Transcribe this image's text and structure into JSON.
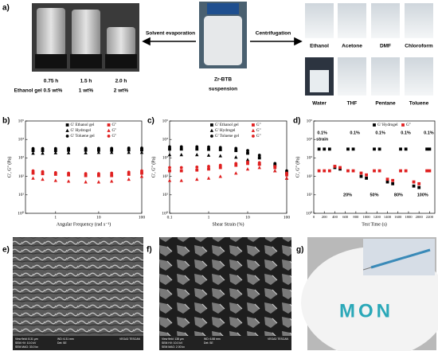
{
  "labels": [
    "a)",
    "b)",
    "c)",
    "d)",
    "e)",
    "f)",
    "g)"
  ],
  "panel_a": {
    "arrow_left": "Solvent evaporation",
    "arrow_right": "Centrifugation",
    "times": [
      "0.75 h",
      "1.5 h",
      "2.0 h"
    ],
    "concentrations": [
      "Ethanol gel 0.5 wt%",
      "1 wt%",
      "2 wt%"
    ],
    "suspension": [
      "Zr-BTB",
      "suspension"
    ],
    "solvents": [
      "Ethanol",
      "Acetone",
      "DMF",
      "Chloroform",
      "Water",
      "THF",
      "Pentane",
      "Toluene"
    ]
  },
  "sem": [
    [
      "View field: 8.31 μm",
      "SEM HV: 10.0 kV",
      "SEM MAG: 33.0 kx",
      "WD: 6.31 mm",
      "Det: SE",
      "VEGA3 TESCAN"
    ],
    [
      "View field: 138 μm",
      "SEM HV: 10.0 kV",
      "SEM MAG: 2.00 kx",
      "WD: 6.88 mm",
      "Det: SE",
      "VEGA3 TESCAN"
    ]
  ],
  "panel_g": {
    "text": "MON"
  },
  "chart_data": [
    {
      "type": "scatter",
      "xlabel": "Angular Frequency (rad s⁻¹)",
      "ylabel": "G', G'' (Pa)",
      "xlog": true,
      "ylog": true,
      "x": [
        0.3,
        0.5,
        1,
        2,
        5,
        10,
        20,
        50,
        100
      ],
      "xlim": [
        0.2,
        100
      ],
      "xticks": [
        1,
        10,
        100
      ],
      "ylim": [
        1,
        100000
      ],
      "yticks": [
        {
          "value": 1,
          "label": "10⁰"
        },
        {
          "value": 10,
          "label": "10¹"
        },
        {
          "value": 100,
          "label": "10²"
        },
        {
          "value": 1000,
          "label": "10³"
        },
        {
          "value": 10000,
          "label": "10⁴"
        },
        {
          "value": 100000,
          "label": "10⁵"
        }
      ],
      "series": [
        {
          "name": "G' Ethanol gel",
          "color": "#000000",
          "marker": "square",
          "values": [
            2500,
            2500,
            2500,
            2600,
            2600,
            2600,
            2600,
            2700,
            2700
          ]
        },
        {
          "name": "G' Hydrogel",
          "color": "#000000",
          "marker": "triangle",
          "values": [
            1800,
            1800,
            1900,
            1900,
            1900,
            2000,
            2000,
            2000,
            2000
          ]
        },
        {
          "name": "G' Toluene gel",
          "color": "#000000",
          "marker": "circle",
          "values": [
            3200,
            3200,
            3200,
            3300,
            3300,
            3300,
            3300,
            3400,
            3400
          ]
        },
        {
          "name": "G''",
          "color": "#e02020",
          "marker": "square",
          "values": [
            150,
            140,
            130,
            120,
            110,
            110,
            110,
            130,
            150
          ]
        },
        {
          "name": "G''",
          "color": "#e02020",
          "marker": "triangle",
          "values": [
            80,
            70,
            60,
            55,
            50,
            50,
            55,
            70,
            100
          ]
        },
        {
          "name": "G''",
          "color": "#e02020",
          "marker": "circle",
          "values": [
            200,
            180,
            160,
            150,
            140,
            140,
            150,
            170,
            200
          ]
        }
      ]
    },
    {
      "type": "scatter",
      "xlabel": "Shear Strain (%)",
      "ylabel": "G', G'' (Pa)",
      "xlog": true,
      "ylog": true,
      "x": [
        0.1,
        0.2,
        0.5,
        1,
        2,
        5,
        10,
        20,
        50,
        100
      ],
      "xlim": [
        0.1,
        100
      ],
      "xticks": [
        0.1,
        1,
        10,
        100
      ],
      "ylim": [
        1,
        100000
      ],
      "yticks": [
        {
          "value": 1,
          "label": "10⁰"
        },
        {
          "value": 10,
          "label": "10¹"
        },
        {
          "value": 100,
          "label": "10²"
        },
        {
          "value": 1000,
          "label": "10³"
        },
        {
          "value": 10000,
          "label": "10⁴"
        },
        {
          "value": 100000,
          "label": "10⁵"
        }
      ],
      "series": [
        {
          "name": "G' Ethanol gel",
          "color": "#000000",
          "marker": "square",
          "values": [
            3000,
            3000,
            3000,
            2900,
            2800,
            2500,
            1800,
            1000,
            400,
            150
          ]
        },
        {
          "name": "G' Hydrogel",
          "color": "#000000",
          "marker": "triangle",
          "values": [
            1500,
            1500,
            1500,
            1400,
            1300,
            1100,
            800,
            500,
            200,
            80
          ]
        },
        {
          "name": "G' Toluene gel",
          "color": "#000000",
          "marker": "circle",
          "values": [
            4000,
            4000,
            4000,
            3900,
            3700,
            3300,
            2500,
            1400,
            500,
            200
          ]
        },
        {
          "name": "G''",
          "color": "#e02020",
          "marker": "square",
          "values": [
            200,
            200,
            220,
            250,
            300,
            400,
            500,
            450,
            300,
            120
          ]
        },
        {
          "name": "G''",
          "color": "#e02020",
          "marker": "triangle",
          "values": [
            60,
            60,
            70,
            80,
            100,
            150,
            250,
            300,
            200,
            80
          ]
        },
        {
          "name": "G''",
          "color": "#e02020",
          "marker": "circle",
          "values": [
            300,
            300,
            320,
            350,
            400,
            500,
            600,
            550,
            350,
            150
          ]
        }
      ]
    },
    {
      "type": "scatter",
      "xlabel": "Test Time (s)",
      "ylabel": "G', G'' (Pa)",
      "xlog": false,
      "ylog": true,
      "x": [
        100,
        200,
        300,
        400,
        500,
        650,
        750,
        900,
        1000,
        1150,
        1250,
        1400,
        1500,
        1650,
        1750,
        1900,
        2000,
        2150,
        2200
      ],
      "xlim": [
        0,
        2300
      ],
      "xticks": [
        0,
        200,
        400,
        600,
        800,
        1000,
        1200,
        1400,
        1600,
        1800,
        2000,
        2200
      ],
      "ylim": [
        1,
        100000
      ],
      "yticks": [
        {
          "value": 1,
          "label": "10⁰"
        },
        {
          "value": 10,
          "label": "10¹"
        },
        {
          "value": 100,
          "label": "10²"
        },
        {
          "value": 1000,
          "label": "10³"
        },
        {
          "value": 10000,
          "label": "10⁴"
        },
        {
          "value": 100000,
          "label": "10⁵"
        }
      ],
      "series": [
        {
          "name": "G' Hydrogel",
          "color": "#000000",
          "marker": "square",
          "values": [
            3000,
            3000,
            3000,
            300,
            250,
            3000,
            3000,
            100,
            80,
            3000,
            3000,
            50,
            40,
            3000,
            3000,
            30,
            25,
            3000,
            3000
          ]
        },
        {
          "name": "G''",
          "color": "#e02020",
          "marker": "square",
          "values": [
            200,
            200,
            200,
            350,
            300,
            200,
            200,
            150,
            120,
            200,
            200,
            70,
            60,
            200,
            200,
            50,
            40,
            200,
            200
          ]
        }
      ],
      "annotations": [
        "0.1%",
        "strain",
        "0.1%",
        "0.1%",
        "0.1%",
        "0.1%",
        "20%",
        "50%",
        "80%",
        "100%"
      ]
    }
  ]
}
